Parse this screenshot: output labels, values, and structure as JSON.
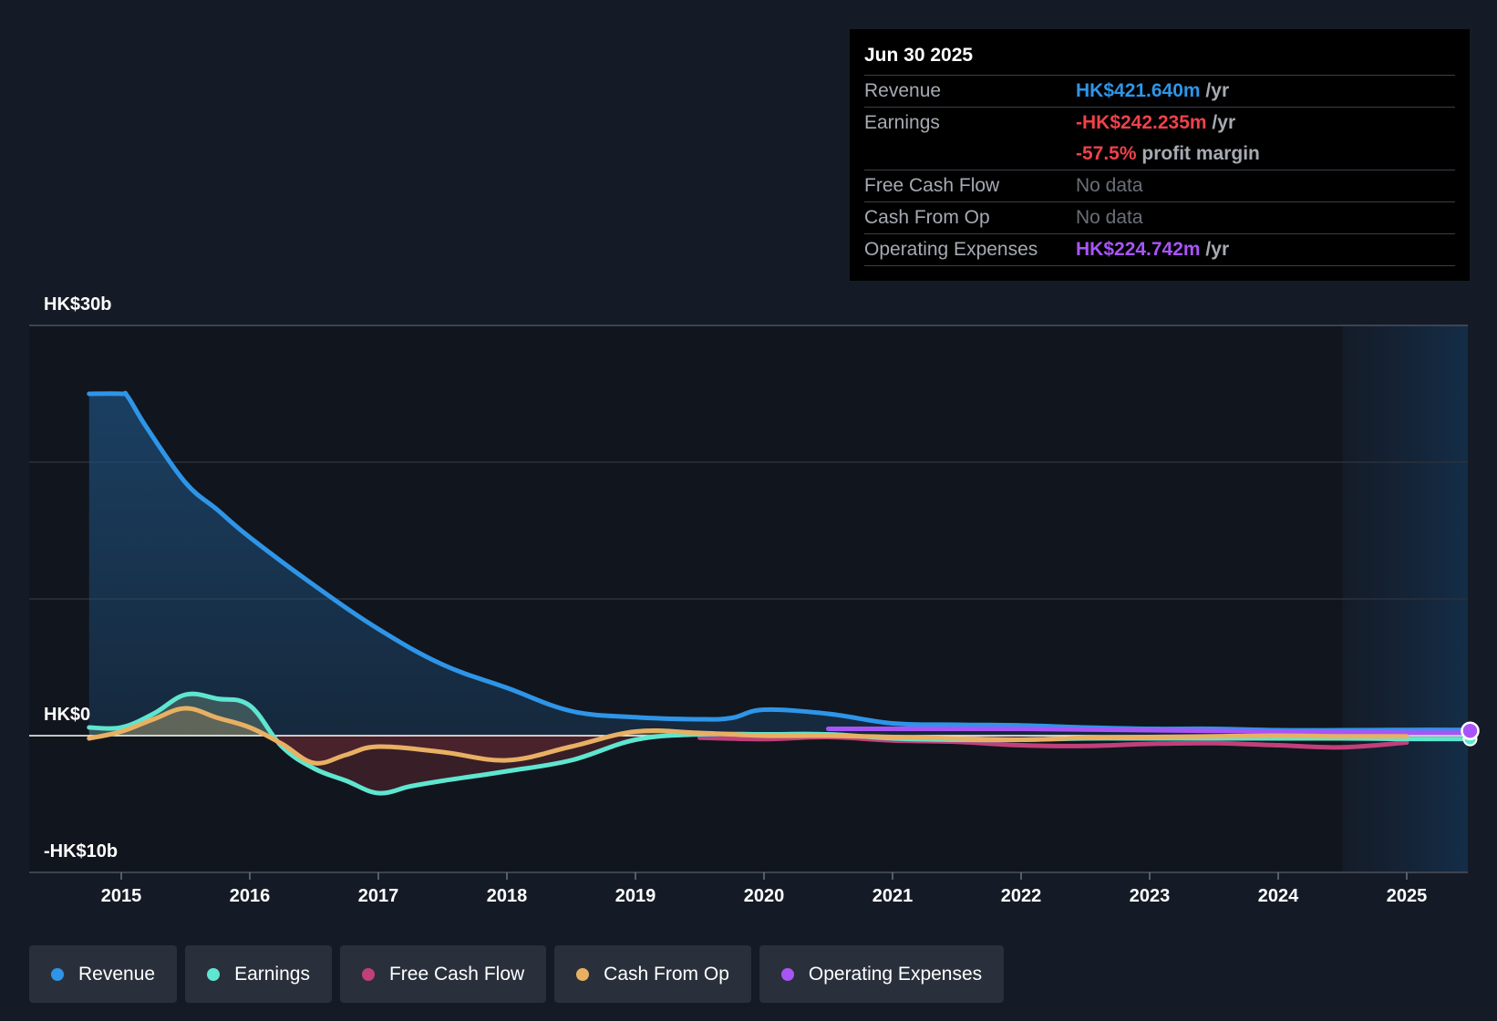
{
  "tooltip": {
    "date": "Jun 30 2025",
    "rows": {
      "revenue": {
        "label": "Revenue",
        "value": "HK$421.640m",
        "suffix": " /yr"
      },
      "earnings": {
        "label": "Earnings",
        "value": "-HK$242.235m",
        "suffix": " /yr",
        "margin_value": "-57.5%",
        "margin_suffix": " profit margin"
      },
      "fcf": {
        "label": "Free Cash Flow",
        "value": "No data"
      },
      "cfo": {
        "label": "Cash From Op",
        "value": "No data"
      },
      "opex": {
        "label": "Operating Expenses",
        "value": "HK$224.742m",
        "suffix": " /yr"
      }
    }
  },
  "legend": {
    "revenue": "Revenue",
    "earnings": "Earnings",
    "fcf": "Free Cash Flow",
    "cfo": "Cash From Op",
    "opex": "Operating Expenses"
  },
  "colors": {
    "revenue": "#2e95e8",
    "earnings": "#5ee6d0",
    "fcf": "#c0407a",
    "cfo": "#e8b063",
    "opex": "#a855f7"
  },
  "chart_data": {
    "type": "line",
    "y_tick_labels": [
      "HK$30b",
      "HK$0",
      "-HK$10b"
    ],
    "ylim": [
      -10,
      30
    ],
    "y_unit": "HK$ billions",
    "x_tick_labels": [
      "2015",
      "2016",
      "2017",
      "2018",
      "2019",
      "2020",
      "2021",
      "2022",
      "2023",
      "2024",
      "2025"
    ],
    "xlim": [
      2014.3,
      2025.5
    ],
    "forecast_region_start": 2024.5,
    "series": [
      {
        "name": "Revenue",
        "key": "revenue",
        "fill": true,
        "x": [
          2014.75,
          2015.0,
          2015.05,
          2015.2,
          2015.5,
          2015.75,
          2016.0,
          2016.5,
          2017.0,
          2017.5,
          2018.0,
          2018.5,
          2019.0,
          2019.5,
          2019.75,
          2020.0,
          2020.5,
          2021.0,
          2021.5,
          2022.0,
          2022.5,
          2023.0,
          2023.5,
          2024.0,
          2024.5,
          2025.0,
          2025.5
        ],
        "y": [
          25.0,
          25.0,
          24.8,
          22.5,
          18.5,
          16.5,
          14.5,
          11.0,
          7.8,
          5.2,
          3.5,
          1.8,
          1.35,
          1.2,
          1.3,
          1.9,
          1.6,
          0.9,
          0.8,
          0.75,
          0.6,
          0.5,
          0.5,
          0.4,
          0.4,
          0.42,
          0.42
        ]
      },
      {
        "name": "Earnings",
        "key": "earnings",
        "fill": true,
        "x": [
          2014.75,
          2015.0,
          2015.25,
          2015.5,
          2015.75,
          2016.0,
          2016.25,
          2016.5,
          2016.75,
          2017.0,
          2017.25,
          2017.5,
          2018.0,
          2018.5,
          2019.0,
          2019.5,
          2020.0,
          2020.5,
          2021.0,
          2021.5,
          2022.0,
          2022.5,
          2023.0,
          2023.5,
          2024.0,
          2024.5,
          2025.0,
          2025.5
        ],
        "y": [
          0.6,
          0.6,
          1.6,
          3.0,
          2.7,
          2.2,
          -0.8,
          -2.4,
          -3.3,
          -4.2,
          -3.7,
          -3.3,
          -2.6,
          -1.8,
          -0.3,
          0.1,
          0.1,
          0.1,
          -0.2,
          -0.3,
          -0.3,
          -0.2,
          -0.2,
          -0.2,
          -0.2,
          -0.2,
          -0.24,
          -0.24
        ]
      },
      {
        "name": "Free Cash Flow",
        "key": "fcf",
        "fill": false,
        "x": [
          2019.5,
          2020.0,
          2020.5,
          2021.0,
          2021.5,
          2022.0,
          2022.5,
          2023.0,
          2023.5,
          2024.0,
          2024.5,
          2025.0
        ],
        "y": [
          -0.15,
          -0.25,
          -0.1,
          -0.35,
          -0.45,
          -0.7,
          -0.75,
          -0.6,
          -0.55,
          -0.7,
          -0.85,
          -0.5
        ]
      },
      {
        "name": "Cash From Op",
        "key": "cfo",
        "fill": true,
        "x": [
          2014.75,
          2015.0,
          2015.25,
          2015.5,
          2015.75,
          2016.0,
          2016.25,
          2016.5,
          2016.75,
          2017.0,
          2017.5,
          2018.0,
          2018.5,
          2019.0,
          2019.5,
          2020.0,
          2020.5,
          2021.0,
          2021.5,
          2022.0,
          2022.5,
          2023.0,
          2023.5,
          2024.0,
          2024.5,
          2025.0
        ],
        "y": [
          -0.2,
          0.3,
          1.2,
          2.0,
          1.3,
          0.6,
          -0.6,
          -2.0,
          -1.4,
          -0.8,
          -1.2,
          -1.8,
          -0.8,
          0.3,
          0.2,
          0.0,
          0.0,
          -0.1,
          -0.2,
          -0.3,
          -0.15,
          -0.1,
          -0.05,
          0.0,
          -0.05,
          -0.05
        ]
      },
      {
        "name": "Operating Expenses",
        "key": "opex",
        "fill": false,
        "x": [
          2020.5,
          2021.0,
          2021.5,
          2022.0,
          2022.5,
          2023.0,
          2023.5,
          2024.0,
          2024.5,
          2025.0,
          2025.5
        ],
        "y": [
          0.5,
          0.5,
          0.5,
          0.5,
          0.45,
          0.4,
          0.35,
          0.3,
          0.25,
          0.22,
          0.22
        ]
      }
    ]
  }
}
